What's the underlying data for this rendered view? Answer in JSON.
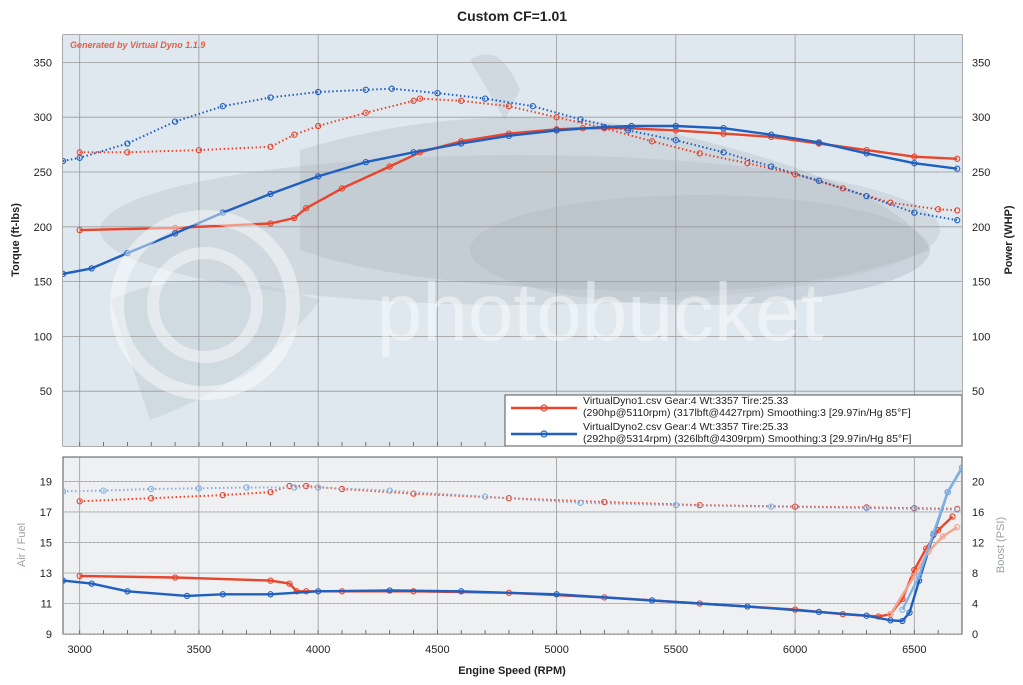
{
  "title": "Custom CF=1.01",
  "watermark_text": "photobucket",
  "generator_note": "Generated by Virtual Dyno 1.1.9",
  "colors": {
    "run1": "#e8452c",
    "run2": "#1f5fbf",
    "run1_light": "#f5a48f",
    "run2_light": "#7fb0e6",
    "plot_bg": "#d9e3ec",
    "grid": "#9a9a9a"
  },
  "chart_data": [
    {
      "type": "line",
      "name": "main",
      "xlabel": "Engine Speed (RPM)",
      "ylabel_left": "Torque (ft-lbs)",
      "ylabel_right": "Power (WHP)",
      "xlim": [
        2930,
        6700
      ],
      "ylim": [
        0,
        375
      ],
      "x_ticks": [
        3000,
        3500,
        4000,
        4500,
        5000,
        5500,
        6000,
        6500
      ],
      "y_ticks_left": [
        50,
        100,
        150,
        200,
        250,
        300,
        350
      ],
      "y_ticks_right": [
        50,
        100,
        150,
        200,
        250,
        300,
        350
      ],
      "grid": true,
      "legend_position": "bottom-right",
      "legend": [
        {
          "line1": "VirtualDyno1.csv Gear:4 Wt:3357 Tire:25.33",
          "line2": "(290hp@5110rpm) (317lbft@4427rpm) Smoothing:3 [29.97in/Hg 85°F]",
          "color": "#e8452c"
        },
        {
          "line1": "VirtualDyno2.csv Gear:4 Wt:3357 Tire:25.33",
          "line2": "(292hp@5314rpm) (326lbft@4309rpm) Smoothing:3 [29.97in/Hg 85°F]",
          "color": "#1f5fbf"
        }
      ],
      "series": [
        {
          "name": "VirtualDyno1.csv",
          "measure": "torque",
          "style": "dotted",
          "color": "#e8452c",
          "x": [
            3000,
            3200,
            3500,
            3800,
            3900,
            4000,
            4200,
            4400,
            4427,
            4600,
            4800,
            5000,
            5200,
            5400,
            5600,
            5800,
            6000,
            6200,
            6400,
            6600,
            6680
          ],
          "y": [
            268,
            268,
            270,
            273,
            284,
            292,
            304,
            315,
            317,
            315,
            310,
            300,
            290,
            278,
            267,
            258,
            248,
            235,
            222,
            216,
            215
          ]
        },
        {
          "name": "VirtualDyno1.csv",
          "measure": "power",
          "style": "solid",
          "color": "#e8452c",
          "x": [
            3000,
            3400,
            3800,
            3900,
            3950,
            4100,
            4300,
            4427,
            4600,
            4800,
            5000,
            5110,
            5300,
            5500,
            5700,
            5900,
            6100,
            6300,
            6500,
            6680
          ],
          "y": [
            197,
            199,
            203,
            208,
            217,
            235,
            255,
            268,
            278,
            285,
            289,
            290,
            290,
            288,
            285,
            282,
            276,
            270,
            264,
            262
          ]
        },
        {
          "name": "VirtualDyno2.csv",
          "measure": "torque",
          "style": "dotted",
          "color": "#1f5fbf",
          "x": [
            2930,
            3000,
            3200,
            3400,
            3600,
            3800,
            4000,
            4200,
            4309,
            4500,
            4700,
            4900,
            5100,
            5300,
            5500,
            5700,
            5900,
            6100,
            6300,
            6500,
            6680
          ],
          "y": [
            260,
            263,
            276,
            296,
            310,
            318,
            323,
            325,
            326,
            322,
            317,
            310,
            298,
            288,
            279,
            268,
            255,
            242,
            228,
            213,
            206
          ]
        },
        {
          "name": "VirtualDyno2.csv",
          "measure": "power",
          "style": "solid",
          "color": "#1f5fbf",
          "x": [
            2930,
            3050,
            3200,
            3400,
            3600,
            3800,
            4000,
            4200,
            4400,
            4600,
            4800,
            5000,
            5200,
            5314,
            5500,
            5700,
            5900,
            6100,
            6300,
            6500,
            6680
          ],
          "y": [
            157,
            162,
            176,
            194,
            213,
            230,
            246,
            259,
            268,
            276,
            283,
            288,
            291,
            292,
            292,
            290,
            284,
            277,
            267,
            258,
            253
          ]
        }
      ]
    },
    {
      "type": "line",
      "name": "lower",
      "xlabel": "Engine Speed (RPM)",
      "ylabel_left": "Air / Fuel",
      "ylabel_right": "Boost (PSI)",
      "xlim": [
        2930,
        6700
      ],
      "ylim_left": [
        9,
        20.6
      ],
      "ylim_right": [
        0,
        23.2
      ],
      "y_ticks_left": [
        9,
        11,
        13,
        15,
        17,
        19
      ],
      "y_ticks_right": [
        0,
        4,
        8,
        12,
        16,
        20
      ],
      "grid": true,
      "series": [
        {
          "name": "VirtualDyno1.csv",
          "measure": "boost",
          "axis": "right",
          "style": "dotted",
          "color": "#e8452c",
          "x": [
            3000,
            3300,
            3600,
            3800,
            3880,
            3950,
            4100,
            4400,
            4800,
            5200,
            5600,
            6000,
            6300,
            6500,
            6680
          ],
          "y": [
            17.4,
            17.8,
            18.2,
            18.6,
            19.4,
            19.4,
            19.0,
            18.4,
            17.8,
            17.3,
            16.9,
            16.7,
            16.6,
            16.5,
            16.4
          ]
        },
        {
          "name": "VirtualDyno2.csv",
          "measure": "boost",
          "axis": "right",
          "style": "dotted",
          "color": "#7fb0e6",
          "x": [
            2930,
            3100,
            3300,
            3500,
            3700,
            3900,
            4000,
            4300,
            4700,
            5100,
            5500,
            5900,
            6300,
            6500,
            6680
          ],
          "y": [
            18.7,
            18.8,
            19.0,
            19.1,
            19.2,
            19.2,
            19.2,
            18.8,
            18.0,
            17.2,
            16.9,
            16.7,
            16.5,
            16.4,
            16.3
          ]
        },
        {
          "name": "VirtualDyno1.csv",
          "measure": "air_fuel",
          "axis": "left",
          "style": "solid",
          "color": "#e8452c",
          "x": [
            3000,
            3400,
            3800,
            3880,
            3910,
            3950,
            4100,
            4400,
            4800,
            5200,
            5600,
            6000,
            6200,
            6350,
            6400,
            6450,
            6500,
            6550,
            6600,
            6660
          ],
          "y": [
            12.8,
            12.7,
            12.5,
            12.3,
            11.8,
            11.8,
            11.8,
            11.8,
            11.7,
            11.4,
            11.0,
            10.6,
            10.3,
            10.15,
            10.3,
            11.3,
            13.2,
            14.6,
            15.8,
            16.7
          ]
        },
        {
          "name": "VirtualDyno2.csv",
          "measure": "air_fuel",
          "axis": "left",
          "style": "solid",
          "color": "#1f5fbf",
          "x": [
            2930,
            3050,
            3200,
            3450,
            3600,
            3800,
            4000,
            4300,
            4600,
            5000,
            5400,
            5800,
            6100,
            6300,
            6400,
            6450,
            6480,
            6520,
            6580,
            6640,
            6700
          ],
          "y": [
            12.5,
            12.3,
            11.8,
            11.5,
            11.6,
            11.6,
            11.8,
            11.85,
            11.8,
            11.6,
            11.2,
            10.8,
            10.45,
            10.2,
            9.9,
            9.85,
            10.4,
            12.5,
            15.5,
            18.3,
            19.9
          ]
        },
        {
          "name": "VirtualDyno1.csv",
          "measure": "air_fuel_raw",
          "axis": "left",
          "style": "solid",
          "color": "#f5a48f",
          "x": [
            6400,
            6500,
            6560,
            6620,
            6680
          ],
          "y": [
            10.3,
            12.8,
            14.4,
            15.4,
            16.0
          ]
        },
        {
          "name": "VirtualDyno2.csv",
          "measure": "air_fuel_raw",
          "axis": "left",
          "style": "solid",
          "color": "#7fb0e6",
          "x": [
            6450,
            6520,
            6580,
            6640,
            6700
          ],
          "y": [
            10.6,
            12.8,
            15.6,
            18.3,
            19.9
          ]
        }
      ]
    }
  ]
}
